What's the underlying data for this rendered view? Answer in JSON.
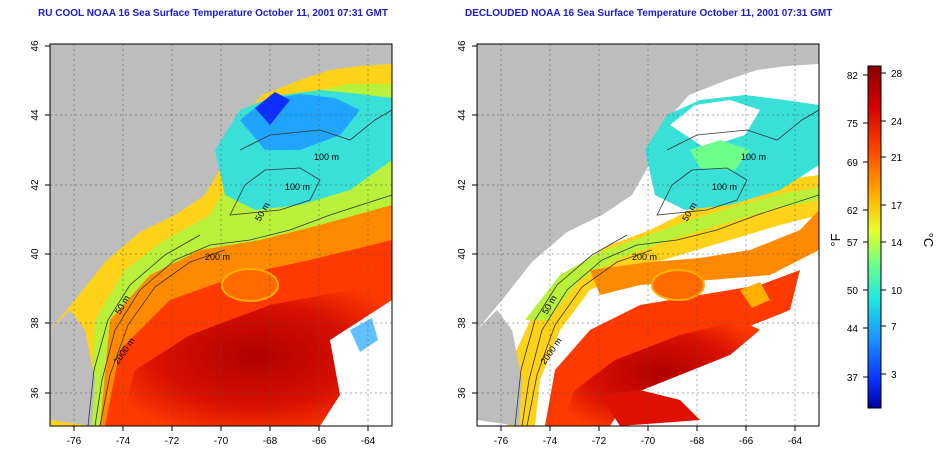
{
  "left_panel": {
    "title": "RU COOL NOAA 16 Sea Surface Temperature October 11, 2001 07:31 GMT",
    "contour_labels": [
      "100 m",
      "100 m",
      "50 m",
      "200 m",
      "50 m",
      "2000 m"
    ]
  },
  "right_panel": {
    "title": "DECLOUDED NOAA 16 Sea Surface Temperature October 11, 2001 07:31 GMT",
    "contour_labels": [
      "100 m",
      "100 m",
      "50 m",
      "200 m",
      "50 m",
      "2000 m"
    ]
  },
  "axes": {
    "x_ticks": [
      "-76",
      "-74",
      "-72",
      "-70",
      "-68",
      "-66",
      "-64"
    ],
    "y_ticks": [
      "36",
      "38",
      "40",
      "42",
      "44",
      "46"
    ]
  },
  "colorbar": {
    "f_unit": "°F",
    "c_unit": "°C",
    "f_ticks": [
      "82",
      "75",
      "69",
      "62",
      "57",
      "50",
      "44",
      "37"
    ],
    "c_ticks": [
      "28",
      "24",
      "21",
      "17",
      "14",
      "10",
      "7",
      "3"
    ]
  },
  "colors": {
    "land": "#bdbdbd",
    "cloud": "#ffffff",
    "title": "#1a1acc",
    "warm": "#d40000",
    "cold": "#1fa5ff"
  }
}
